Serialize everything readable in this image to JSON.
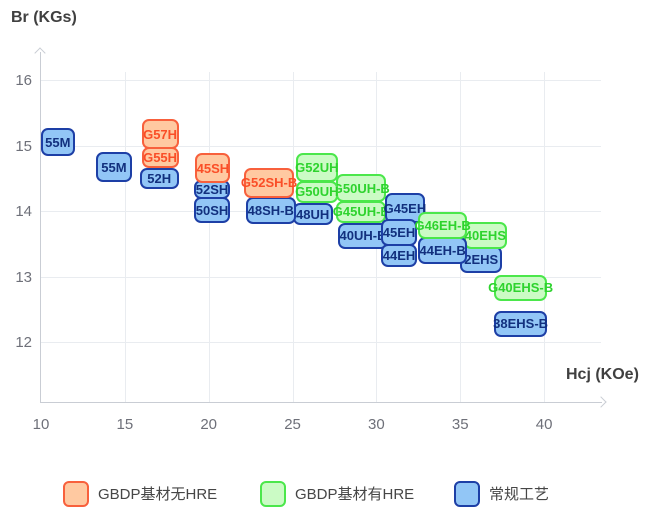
{
  "colors": {
    "background": "#FFFFFF",
    "grid": "#E9ECF0",
    "axis": "#C9CDD4",
    "tick_text": "#6E7079",
    "title_text": "#404040",
    "legend_text": "#464646"
  },
  "chart_data": {
    "type": "scatter",
    "description": "Magnet grade map: rounded boxes mark each grade's Hcj range (x) and Br range (y)",
    "x_axis": {
      "label": "Hcj (KOe)",
      "ticks": [
        10,
        15,
        20,
        25,
        30,
        35,
        40
      ],
      "range": [
        10,
        44.8
      ]
    },
    "y_axis": {
      "label": "Br (KGs)",
      "ticks": [
        16,
        15,
        14,
        13,
        12
      ],
      "range": [
        11.1,
        16.4
      ]
    },
    "grid": true,
    "legend_position": "bottom",
    "series": [
      {
        "name": "GBDP基材无HRE",
        "fill": "#FFC9A1",
        "border": "#F8603C",
        "text_color": "#FA4E27",
        "boxes": [
          {
            "label": "G57H",
            "hcj": [
              16.0,
              18.2
            ],
            "br": [
              14.95,
              15.4
            ],
            "z": 8
          },
          {
            "label": "G55H",
            "hcj": [
              16.0,
              18.2
            ],
            "br": [
              14.65,
              14.97
            ],
            "z": 9
          },
          {
            "label": "45SH",
            "hcj": [
              19.2,
              21.3
            ],
            "br": [
              14.42,
              14.88
            ],
            "z": 9
          },
          {
            "label": "G52SH-B",
            "hcj": [
              22.1,
              25.1
            ],
            "br": [
              14.2,
              14.66
            ],
            "z": 8
          }
        ]
      },
      {
        "name": "GBDP基材有HRE",
        "fill": "#CBFBC5",
        "border": "#4BE74B",
        "text_color": "#2ED32E",
        "boxes": [
          {
            "label": "G52UH",
            "hcj": [
              25.2,
              27.7
            ],
            "br": [
              14.44,
              14.88
            ],
            "z": 9
          },
          {
            "label": "G50UH",
            "hcj": [
              25.2,
              27.7
            ],
            "br": [
              14.12,
              14.46
            ],
            "z": 8
          },
          {
            "label": "G50UH-B",
            "hcj": [
              27.6,
              30.6
            ],
            "br": [
              14.13,
              14.57
            ],
            "z": 6
          },
          {
            "label": "G45UH-B",
            "hcj": [
              27.6,
              30.6
            ],
            "br": [
              13.82,
              14.16
            ],
            "z": 5
          },
          {
            "label": "G46EH-B",
            "hcj": [
              32.5,
              35.4
            ],
            "br": [
              13.57,
              13.98
            ],
            "z": 15
          },
          {
            "label": "40EHS",
            "hcj": [
              35.2,
              37.8
            ],
            "br": [
              13.42,
              13.83
            ],
            "z": 12
          },
          {
            "label": "G40EHS-B",
            "hcj": [
              37.0,
              40.2
            ],
            "br": [
              12.63,
              13.03
            ],
            "z": 5
          }
        ]
      },
      {
        "name": "常规工艺",
        "fill": "#92C6F6",
        "border": "#1D3FA6",
        "text_color": "#12307E",
        "boxes": [
          {
            "label": "55M",
            "hcj": [
              10.0,
              12.0
            ],
            "br": [
              14.84,
              15.26
            ],
            "z": 5
          },
          {
            "label": "55M",
            "hcj": [
              13.3,
              15.4
            ],
            "br": [
              14.44,
              14.9
            ],
            "z": 5
          },
          {
            "label": "52H",
            "hcj": [
              15.9,
              18.2
            ],
            "br": [
              14.34,
              14.66
            ],
            "z": 7
          },
          {
            "label": "52SH",
            "hcj": [
              19.1,
              21.3
            ],
            "br": [
              14.18,
              14.47
            ],
            "z": 8
          },
          {
            "label": "50SH",
            "hcj": [
              19.1,
              21.3
            ],
            "br": [
              13.81,
              14.21
            ],
            "z": 7
          },
          {
            "label": "48SH-B",
            "hcj": [
              22.2,
              25.2
            ],
            "br": [
              13.8,
              14.21
            ],
            "z": 7
          },
          {
            "label": "48UH",
            "hcj": [
              25.0,
              27.4
            ],
            "br": [
              13.78,
              14.12
            ],
            "z": 6
          },
          {
            "label": "40UH-B",
            "hcj": [
              27.7,
              30.7
            ],
            "br": [
              13.42,
              13.82
            ],
            "z": 4
          },
          {
            "label": "G45EH",
            "hcj": [
              30.5,
              32.9
            ],
            "br": [
              13.82,
              14.27
            ],
            "z": 10
          },
          {
            "label": "45EH",
            "hcj": [
              30.3,
              32.4
            ],
            "br": [
              13.47,
              13.88
            ],
            "z": 12
          },
          {
            "label": "44EH",
            "hcj": [
              30.3,
              32.4
            ],
            "br": [
              13.14,
              13.5
            ],
            "z": 11
          },
          {
            "label": "44EH-B",
            "hcj": [
              32.5,
              35.4
            ],
            "br": [
              13.19,
              13.6
            ],
            "z": 14
          },
          {
            "label": "2EHS",
            "hcj": [
              35.0,
              37.5
            ],
            "br": [
              13.05,
              13.47
            ],
            "z": 11
          },
          {
            "label": "38EHS-B",
            "hcj": [
              37.0,
              40.2
            ],
            "br": [
              12.08,
              12.48
            ],
            "z": 5
          }
        ]
      }
    ]
  }
}
